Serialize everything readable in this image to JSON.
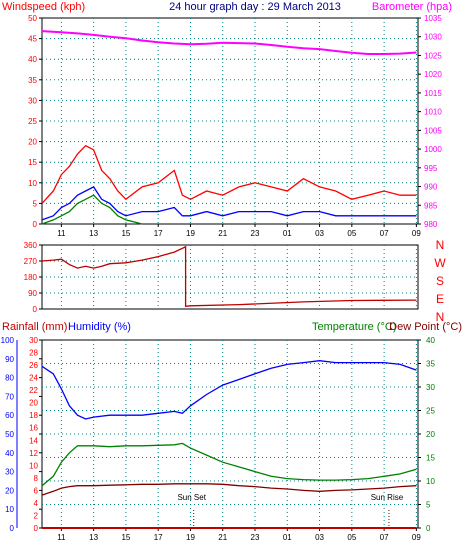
{
  "chart_data": [
    {
      "type": "line",
      "title": "24 hour graph day : 29 March 2013",
      "left_axis_label": "Windspeed (kph)",
      "right_axis_label": "Barometer (hpa)",
      "x_ticks": [
        "11",
        "13",
        "15",
        "17",
        "19",
        "21",
        "23",
        "01",
        "03",
        "05",
        "07",
        "09"
      ],
      "left_ticks": [
        0,
        5,
        10,
        15,
        20,
        25,
        30,
        35,
        40,
        45,
        50
      ],
      "right_ticks": [
        980,
        985,
        990,
        995,
        1000,
        1005,
        1010,
        1015,
        1020,
        1025,
        1030,
        1035
      ],
      "left_range": [
        0,
        50
      ],
      "right_range": [
        980,
        1035
      ],
      "colors": {
        "gust": "#ff0000",
        "speed": "#0000ff",
        "average": "#008000",
        "barometer": "#ff00ff",
        "axis_left": "#ff0000",
        "axis_right": "#ff00ff",
        "title": "#000080"
      },
      "series": [
        {
          "key": "barometer",
          "x": [
            9.8,
            11,
            12,
            13,
            14,
            15,
            16,
            17,
            18,
            19,
            20,
            21,
            22,
            23,
            24,
            25,
            26,
            27,
            28,
            29,
            30,
            31,
            32,
            33
          ],
          "values": [
            1031.5,
            1031.2,
            1030.9,
            1030.5,
            1030.0,
            1029.6,
            1029.0,
            1028.5,
            1028.2,
            1028.0,
            1028.1,
            1028.4,
            1028.3,
            1028.2,
            1027.8,
            1027.3,
            1026.9,
            1026.7,
            1026.2,
            1025.7,
            1025.4,
            1025.4,
            1025.5,
            1025.8
          ]
        },
        {
          "key": "gust",
          "x": [
            9.8,
            10.5,
            11,
            11.5,
            12,
            12.5,
            13,
            13.5,
            14,
            14.5,
            15,
            16,
            17,
            18,
            18.5,
            19,
            20,
            21,
            22,
            23,
            24,
            25,
            26,
            27,
            28,
            29,
            30,
            31,
            32,
            33
          ],
          "values": [
            5,
            8,
            12,
            14,
            17,
            19,
            18,
            13,
            11,
            8,
            6,
            9,
            10,
            13,
            7,
            6,
            8,
            7,
            9,
            10,
            9,
            8,
            11,
            9,
            8,
            6,
            7,
            8,
            7,
            7
          ]
        },
        {
          "key": "speed",
          "x": [
            9.8,
            10.5,
            11,
            11.5,
            12,
            12.5,
            13,
            13.5,
            14,
            14.5,
            15,
            16,
            17,
            18,
            18.5,
            19,
            20,
            21,
            22,
            23,
            24,
            25,
            26,
            27,
            28,
            29,
            30,
            31,
            32,
            33
          ],
          "values": [
            1,
            2,
            4,
            5,
            7,
            8,
            9,
            6,
            5,
            3,
            2,
            3,
            3,
            4,
            2,
            2,
            3,
            2,
            3,
            3,
            3,
            2,
            3,
            3,
            2,
            2,
            2,
            2,
            2,
            2
          ]
        },
        {
          "key": "average",
          "x": [
            9.8,
            10.5,
            11,
            11.5,
            12,
            12.5,
            13,
            13.5,
            14,
            14.5,
            15,
            15.5,
            16
          ],
          "values": [
            0,
            1,
            2,
            3,
            5,
            6,
            7,
            5,
            4,
            2,
            1,
            0.5,
            0
          ]
        }
      ]
    },
    {
      "type": "line",
      "left_ticks": [
        0,
        90,
        180,
        270,
        360
      ],
      "right_labels": [
        "N",
        "W",
        "S",
        "E",
        "N"
      ],
      "left_range": [
        0,
        360
      ],
      "colors": {
        "direction": "#c00000",
        "axis": "#ff0000"
      },
      "series": [
        {
          "key": "direction",
          "x": [
            9.8,
            10.5,
            11,
            11.5,
            12,
            12.5,
            13,
            13.5,
            14,
            15,
            16,
            17,
            18,
            18.7,
            18.7,
            19,
            22,
            26,
            29,
            33
          ],
          "values": [
            270,
            275,
            280,
            250,
            230,
            240,
            230,
            240,
            255,
            260,
            275,
            295,
            320,
            350,
            15,
            18,
            25,
            40,
            48,
            50
          ]
        }
      ]
    },
    {
      "type": "line",
      "rainfall_label": "Rainfall (mm)",
      "humidity_label": "Humidity (%)",
      "temperature_label": "Temperature (°C)",
      "dewpoint_label": "Dew Point (°C)",
      "sunset_label": "Sun Set",
      "sunrise_label": "Sun Rise",
      "sunset_hour": 19.2,
      "sunrise_hour": 31.3,
      "humidity_ticks": [
        0,
        10,
        20,
        30,
        40,
        50,
        60,
        70,
        80,
        90,
        100
      ],
      "rain_ticks": [
        0,
        2,
        4,
        6,
        8,
        10,
        12,
        14,
        16,
        18,
        20,
        22,
        24,
        26,
        28,
        30
      ],
      "temp_ticks": [
        0,
        5,
        10,
        15,
        20,
        25,
        30,
        35,
        40
      ],
      "humidity_range": [
        0,
        100
      ],
      "rain_range": [
        0,
        30
      ],
      "temp_range": [
        0,
        40
      ],
      "colors": {
        "humidity": "#0000ff",
        "temperature": "#008000",
        "dewpoint": "#800000",
        "rainfall": "#c00000",
        "axis_left": "#0000ff",
        "axis_rain": "#ff0000",
        "axis_right": "#008000"
      },
      "series": [
        {
          "key": "humidity",
          "x": [
            9.8,
            10.5,
            11,
            11.5,
            12,
            12.5,
            13,
            14,
            15,
            16,
            17,
            18,
            18.5,
            19,
            20,
            21,
            22,
            23,
            24,
            25,
            26,
            27,
            28,
            29,
            30,
            31,
            32,
            33
          ],
          "values": [
            86,
            82,
            74,
            65,
            60,
            58,
            59,
            60,
            60,
            60,
            61,
            62,
            61,
            65,
            71,
            76,
            79,
            82,
            85,
            87,
            88,
            89,
            88,
            88,
            88,
            88,
            87,
            84
          ]
        },
        {
          "key": "temperature",
          "x": [
            9.8,
            10.5,
            11,
            11.5,
            12,
            13,
            14,
            15,
            16,
            17,
            18,
            18.5,
            19,
            20,
            21,
            22,
            23,
            24,
            25,
            26,
            27,
            28,
            29,
            30,
            31,
            32,
            33
          ],
          "values": [
            9,
            11,
            14,
            16,
            17.5,
            17.5,
            17.3,
            17.5,
            17.5,
            17.6,
            17.7,
            18.0,
            17.0,
            15.5,
            14.0,
            13.0,
            12.0,
            11.0,
            10.5,
            10.3,
            10.2,
            10.2,
            10.3,
            10.5,
            11.0,
            11.5,
            12.5
          ]
        },
        {
          "key": "dewpoint",
          "x": [
            9.8,
            10.5,
            11,
            11.5,
            12,
            13,
            14,
            15,
            16,
            17,
            18,
            19,
            20,
            21,
            22,
            23,
            24,
            25,
            26,
            27,
            28,
            29,
            30,
            31,
            32,
            33
          ],
          "values": [
            7.0,
            7.8,
            8.5,
            8.8,
            9.0,
            9.0,
            9.1,
            9.2,
            9.3,
            9.3,
            9.4,
            9.4,
            9.4,
            9.3,
            9.0,
            8.8,
            8.5,
            8.3,
            8.0,
            7.8,
            8.0,
            8.1,
            8.3,
            8.5,
            8.8,
            9.0
          ]
        },
        {
          "key": "rainfall",
          "x": [
            9.8,
            33
          ],
          "values": [
            0,
            0
          ]
        }
      ]
    }
  ]
}
